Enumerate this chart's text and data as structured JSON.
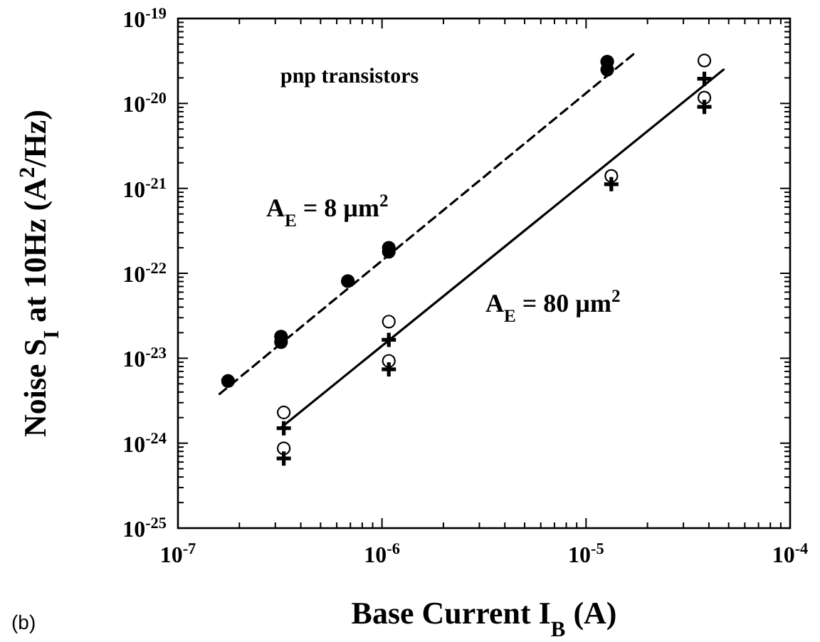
{
  "chart_data": {
    "type": "scatter",
    "xlabel": "Base Current I$_{B}$ (A)",
    "ylabel": "Noise S$_{I}$ at 10Hz (A$^{2}$/Hz)",
    "log": "xy",
    "grid": false,
    "xlim": [
      1e-07,
      0.0001
    ],
    "ylim": [
      1e-25,
      1e-19
    ],
    "xticks": [
      {
        "value": 1e-07,
        "label": "10$^{-7}$"
      },
      {
        "value": 2e-07,
        "label": null
      },
      {
        "value": 3e-07,
        "label": null
      },
      {
        "value": 4e-07,
        "label": null
      },
      {
        "value": 5e-07,
        "label": null
      },
      {
        "value": 6e-07,
        "label": null
      },
      {
        "value": 7e-07,
        "label": null
      },
      {
        "value": 8e-07,
        "label": null
      },
      {
        "value": 9e-07,
        "label": null
      },
      {
        "value": 1e-06,
        "label": "10$^{-6}$"
      },
      {
        "value": 2e-06,
        "label": null
      },
      {
        "value": 3e-06,
        "label": null
      },
      {
        "value": 4e-06,
        "label": null
      },
      {
        "value": 5e-06,
        "label": null
      },
      {
        "value": 6e-06,
        "label": null
      },
      {
        "value": 7e-06,
        "label": null
      },
      {
        "value": 8e-06,
        "label": null
      },
      {
        "value": 9e-06,
        "label": null
      },
      {
        "value": 1e-05,
        "label": "10$^{-5}$"
      },
      {
        "value": 2e-05,
        "label": null
      },
      {
        "value": 3e-05,
        "label": null
      },
      {
        "value": 4e-05,
        "label": null
      },
      {
        "value": 5e-05,
        "label": null
      },
      {
        "value": 6e-05,
        "label": null
      },
      {
        "value": 7e-05,
        "label": null
      },
      {
        "value": 8e-05,
        "label": null
      },
      {
        "value": 9e-05,
        "label": null
      },
      {
        "value": 0.0001,
        "label": "10$^{-4}$"
      }
    ],
    "yticks": [
      {
        "value": 1e-25,
        "label": "10$^{-25}$"
      },
      {
        "value": 2e-25,
        "label": null
      },
      {
        "value": 3e-25,
        "label": null
      },
      {
        "value": 4e-25,
        "label": null
      },
      {
        "value": 5e-25,
        "label": null
      },
      {
        "value": 6e-25,
        "label": null
      },
      {
        "value": 7e-25,
        "label": null
      },
      {
        "value": 8e-25,
        "label": null
      },
      {
        "value": 9e-25,
        "label": null
      },
      {
        "value": 1e-24,
        "label": "10$^{-24}$"
      },
      {
        "value": 2e-24,
        "label": null
      },
      {
        "value": 3e-24,
        "label": null
      },
      {
        "value": 4e-24,
        "label": null
      },
      {
        "value": 5e-24,
        "label": null
      },
      {
        "value": 6e-24,
        "label": null
      },
      {
        "value": 7e-24,
        "label": null
      },
      {
        "value": 8e-24,
        "label": null
      },
      {
        "value": 9e-24,
        "label": null
      },
      {
        "value": 1e-23,
        "label": "10$^{-23}$"
      },
      {
        "value": 2e-23,
        "label": null
      },
      {
        "value": 3e-23,
        "label": null
      },
      {
        "value": 4e-23,
        "label": null
      },
      {
        "value": 5e-23,
        "label": null
      },
      {
        "value": 6e-23,
        "label": null
      },
      {
        "value": 7e-23,
        "label": null
      },
      {
        "value": 8e-23,
        "label": null
      },
      {
        "value": 9e-23,
        "label": null
      },
      {
        "value": 1e-22,
        "label": "10$^{-22}$"
      },
      {
        "value": 2e-22,
        "label": null
      },
      {
        "value": 3e-22,
        "label": null
      },
      {
        "value": 4e-22,
        "label": null
      },
      {
        "value": 5e-22,
        "label": null
      },
      {
        "value": 6e-22,
        "label": null
      },
      {
        "value": 7e-22,
        "label": null
      },
      {
        "value": 8e-22,
        "label": null
      },
      {
        "value": 9e-22,
        "label": null
      },
      {
        "value": 1e-21,
        "label": "10$^{-21}$"
      },
      {
        "value": 2e-21,
        "label": null
      },
      {
        "value": 3e-21,
        "label": null
      },
      {
        "value": 4e-21,
        "label": null
      },
      {
        "value": 5e-21,
        "label": null
      },
      {
        "value": 6e-21,
        "label": null
      },
      {
        "value": 7e-21,
        "label": null
      },
      {
        "value": 8e-21,
        "label": null
      },
      {
        "value": 9e-21,
        "label": null
      },
      {
        "value": 1e-20,
        "label": "10$^{-20}$"
      },
      {
        "value": 2e-20,
        "label": null
      },
      {
        "value": 3e-20,
        "label": null
      },
      {
        "value": 4e-20,
        "label": null
      },
      {
        "value": 5e-20,
        "label": null
      },
      {
        "value": 6e-20,
        "label": null
      },
      {
        "value": 7e-20,
        "label": null
      },
      {
        "value": 8e-20,
        "label": null
      },
      {
        "value": 9e-20,
        "label": null
      },
      {
        "value": 1e-19,
        "label": "10$^{-19}$"
      }
    ],
    "series": [
      {
        "marker": "circle",
        "color": "#000000",
        "x": [
          1.76e-07,
          3.2e-07,
          3.2e-07,
          6.8e-07,
          1.08e-06,
          1.08e-06,
          1.27e-05,
          1.27e-05
        ],
        "values": [
          5.4e-24,
          1.8e-23,
          1.55e-23,
          8.1e-23,
          2e-22,
          1.8e-22,
          3.1e-20,
          2.5e-20
        ]
      },
      {
        "marker": "circle",
        "color": "#ffffff",
        "x": [
          3.3e-07,
          3.3e-07,
          1.08e-06,
          1.08e-06,
          1.33e-05,
          3.8e-05,
          3.8e-05
        ],
        "values": [
          2.3e-24,
          8.7e-25,
          2.7e-23,
          9.3e-24,
          1.4e-21,
          3.2e-20,
          1.17e-20
        ]
      },
      {
        "marker": "cross",
        "color": "#000000",
        "x": [
          3.3e-07,
          3.3e-07,
          1.08e-06,
          1.08e-06,
          1.33e-05,
          3.8e-05,
          3.8e-05
        ],
        "values": [
          1.5e-24,
          6.6e-25,
          1.65e-23,
          7.4e-24,
          1.12e-21,
          1.95e-20,
          9.1e-21
        ]
      },
      {
        "type": "line",
        "line_style": "dashed",
        "color": "#000000",
        "x": [
          1.6e-07,
          1.73e-05
        ],
        "values": [
          3.8e-24,
          3.9e-20
        ]
      },
      {
        "type": "line",
        "line_style": "solid",
        "color": "#000000",
        "x": [
          3.17e-07,
          4.72e-05
        ],
        "values": [
          1.5e-24,
          2.5e-20
        ]
      }
    ],
    "annotations": [
      "pnp transistors",
      "A$_{E}$ = 8 µm$^{2}$",
      "A$_{E}$ = 80 µm$^{2}$",
      "(b)"
    ]
  }
}
